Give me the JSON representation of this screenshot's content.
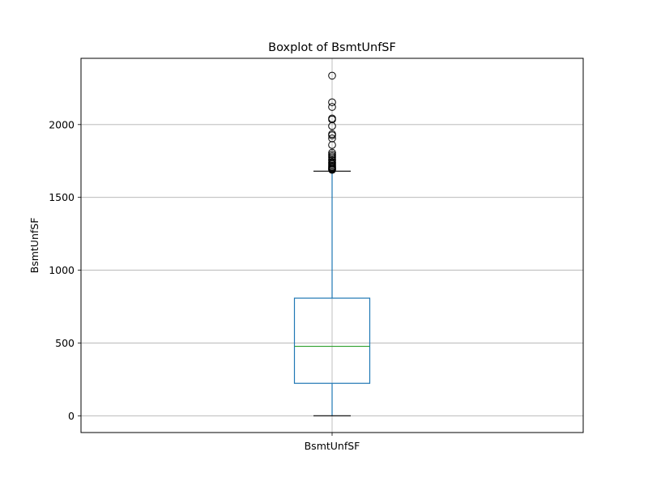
{
  "chart_data": {
    "type": "box",
    "title": "Boxplot of BsmtUnfSF",
    "xlabel": "",
    "ylabel": "BsmtUnfSF",
    "categories": [
      "BsmtUnfSF"
    ],
    "ylim": [
      -115,
      2455
    ],
    "yticks": [
      0,
      500,
      1000,
      1500,
      2000
    ],
    "grid": true,
    "box": {
      "whisker_low": 0,
      "q1": 223,
      "median": 477,
      "q3": 808,
      "whisker_high": 1680
    },
    "outliers": [
      1689,
      1694,
      1698,
      1705,
      1710,
      1717,
      1726,
      1734,
      1741,
      1753,
      1762,
      1774,
      1783,
      1794,
      1807,
      1860,
      1905,
      1926,
      1935,
      1990,
      2035,
      2042,
      2121,
      2153,
      2336
    ],
    "colors": {
      "box": "#1f77b4",
      "median": "#2ca02c",
      "whisker_cap": "#000000",
      "grid": "#b0b0b0",
      "outlier_edge": "#000000"
    }
  }
}
